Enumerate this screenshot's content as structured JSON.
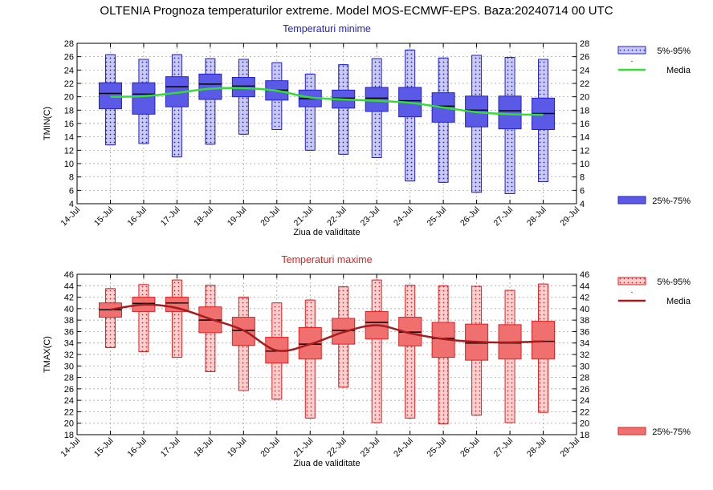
{
  "title": "OLTENIA  Prognoza temperaturilor extreme.  Model MOS-ECMWF-EPS. Baza:20240714 00 UTC",
  "legend": {
    "label_5_95": "5%-95%",
    "label_median_dot": ".",
    "label_media": "Media",
    "label_25_75": "25%-75%"
  },
  "colors": {
    "min_stroke": "#2222cc",
    "min_fill_inner": "#5a5ae6",
    "min_fill_outer": "#c9c9f2",
    "min_mean": "#33dd33",
    "max_stroke": "#e02020",
    "max_fill_inner": "#f07070",
    "max_fill_outer": "#fbd0d0",
    "max_mean": "#a51c1c"
  },
  "chart_data": [
    {
      "type": "box",
      "title": "Temperaturi minime",
      "xlabel": "Ziua de validitate",
      "ylabel": "TMIN(C)",
      "ylim": [
        4,
        28
      ],
      "yticks": [
        4,
        6,
        8,
        10,
        12,
        14,
        16,
        18,
        20,
        22,
        24,
        26,
        28
      ],
      "categories": [
        "14-Jul",
        "15-Jul",
        "16-Jul",
        "17-Jul",
        "18-Jul",
        "19-Jul",
        "20-Jul",
        "21-Jul",
        "22-Jul",
        "23-Jul",
        "24-Jul",
        "25-Jul",
        "26-Jul",
        "27-Jul",
        "28-Jul",
        "29-Jul"
      ],
      "grid": true,
      "boxes": [
        {
          "date": "15-Jul",
          "p5": 12.8,
          "p25": 18.2,
          "median": 20.5,
          "p75": 22.1,
          "p95": 26.3
        },
        {
          "date": "16-Jul",
          "p5": 13.0,
          "p25": 17.4,
          "median": 20.4,
          "p75": 22.1,
          "p95": 25.6
        },
        {
          "date": "17-Jul",
          "p5": 11.0,
          "p25": 18.5,
          "median": 21.5,
          "p75": 23.0,
          "p95": 26.3
        },
        {
          "date": "18-Jul",
          "p5": 12.9,
          "p25": 19.6,
          "median": 21.9,
          "p75": 23.4,
          "p95": 25.7
        },
        {
          "date": "19-Jul",
          "p5": 14.4,
          "p25": 20.0,
          "median": 21.6,
          "p75": 22.9,
          "p95": 25.6
        },
        {
          "date": "20-Jul",
          "p5": 15.1,
          "p25": 19.5,
          "median": 21.0,
          "p75": 22.4,
          "p95": 25.1
        },
        {
          "date": "21-Jul",
          "p5": 12.0,
          "p25": 18.5,
          "median": 19.7,
          "p75": 21.0,
          "p95": 23.4
        },
        {
          "date": "22-Jul",
          "p5": 11.4,
          "p25": 18.3,
          "median": 19.8,
          "p75": 21.0,
          "p95": 24.8
        },
        {
          "date": "23-Jul",
          "p5": 10.9,
          "p25": 17.8,
          "median": 19.8,
          "p75": 21.4,
          "p95": 25.7
        },
        {
          "date": "24-Jul",
          "p5": 7.4,
          "p25": 17.0,
          "median": 19.4,
          "p75": 21.4,
          "p95": 27.0
        },
        {
          "date": "25-Jul",
          "p5": 7.2,
          "p25": 16.2,
          "median": 18.6,
          "p75": 20.6,
          "p95": 25.8
        },
        {
          "date": "26-Jul",
          "p5": 5.7,
          "p25": 15.5,
          "median": 18.0,
          "p75": 20.1,
          "p95": 26.2
        },
        {
          "date": "27-Jul",
          "p5": 5.5,
          "p25": 15.2,
          "median": 17.9,
          "p75": 20.1,
          "p95": 25.9
        },
        {
          "date": "28-Jul",
          "p5": 7.3,
          "p25": 15.1,
          "median": 17.5,
          "p75": 19.8,
          "p95": 25.6
        }
      ],
      "mean": [
        {
          "date": "15-Jul",
          "value": 20.0
        },
        {
          "date": "16-Jul",
          "value": 20.1
        },
        {
          "date": "17-Jul",
          "value": 20.6
        },
        {
          "date": "18-Jul",
          "value": 21.2
        },
        {
          "date": "19-Jul",
          "value": 21.3
        },
        {
          "date": "20-Jul",
          "value": 20.9
        },
        {
          "date": "21-Jul",
          "value": 19.9
        },
        {
          "date": "22-Jul",
          "value": 19.6
        },
        {
          "date": "23-Jul",
          "value": 19.4
        },
        {
          "date": "24-Jul",
          "value": 19.1
        },
        {
          "date": "25-Jul",
          "value": 18.4
        },
        {
          "date": "26-Jul",
          "value": 17.7
        },
        {
          "date": "27-Jul",
          "value": 17.4
        },
        {
          "date": "28-Jul",
          "value": 17.3
        }
      ]
    },
    {
      "type": "box",
      "title": "Temperaturi maxime",
      "xlabel": "Ziua de validitate",
      "ylabel": "TMAX(C)",
      "ylim": [
        18,
        46
      ],
      "yticks": [
        18,
        20,
        22,
        24,
        26,
        28,
        30,
        32,
        34,
        36,
        38,
        40,
        42,
        44,
        46
      ],
      "categories": [
        "14-Jul",
        "15-Jul",
        "16-Jul",
        "17-Jul",
        "18-Jul",
        "19-Jul",
        "20-Jul",
        "21-Jul",
        "22-Jul",
        "23-Jul",
        "24-Jul",
        "25-Jul",
        "26-Jul",
        "27-Jul",
        "28-Jul",
        "29-Jul"
      ],
      "grid": true,
      "boxes": [
        {
          "date": "15-Jul",
          "p5": 33.2,
          "p25": 38.5,
          "median": 39.8,
          "p75": 41.0,
          "p95": 43.5
        },
        {
          "date": "16-Jul",
          "p5": 32.5,
          "p25": 39.5,
          "median": 40.9,
          "p75": 42.0,
          "p95": 44.2
        },
        {
          "date": "17-Jul",
          "p5": 31.5,
          "p25": 39.5,
          "median": 41.0,
          "p75": 42.0,
          "p95": 45.0
        },
        {
          "date": "18-Jul",
          "p5": 29.0,
          "p25": 35.8,
          "median": 38.0,
          "p75": 40.3,
          "p95": 44.1
        },
        {
          "date": "19-Jul",
          "p5": 25.7,
          "p25": 33.6,
          "median": 36.2,
          "p75": 38.5,
          "p95": 42.0
        },
        {
          "date": "20-Jul",
          "p5": 24.2,
          "p25": 30.5,
          "median": 32.6,
          "p75": 35.0,
          "p95": 41.0
        },
        {
          "date": "21-Jul",
          "p5": 20.9,
          "p25": 31.2,
          "median": 33.8,
          "p75": 36.7,
          "p95": 41.5
        },
        {
          "date": "22-Jul",
          "p5": 26.3,
          "p25": 33.8,
          "median": 36.2,
          "p75": 38.3,
          "p95": 43.8
        },
        {
          "date": "23-Jul",
          "p5": 20.1,
          "p25": 34.7,
          "median": 37.6,
          "p75": 39.5,
          "p95": 45.0
        },
        {
          "date": "24-Jul",
          "p5": 20.9,
          "p25": 33.5,
          "median": 35.9,
          "p75": 38.5,
          "p95": 44.1
        },
        {
          "date": "25-Jul",
          "p5": 19.9,
          "p25": 31.5,
          "median": 34.8,
          "p75": 37.6,
          "p95": 44.0
        },
        {
          "date": "26-Jul",
          "p5": 21.4,
          "p25": 31.0,
          "median": 34.0,
          "p75": 37.3,
          "p95": 43.9
        },
        {
          "date": "27-Jul",
          "p5": 20.1,
          "p25": 31.2,
          "median": 34.0,
          "p75": 37.2,
          "p95": 43.2
        },
        {
          "date": "28-Jul",
          "p5": 21.9,
          "p25": 31.2,
          "median": 34.3,
          "p75": 37.8,
          "p95": 44.3
        }
      ],
      "mean": [
        {
          "date": "15-Jul",
          "value": 39.8
        },
        {
          "date": "16-Jul",
          "value": 40.7
        },
        {
          "date": "17-Jul",
          "value": 40.1
        },
        {
          "date": "18-Jul",
          "value": 38.2
        },
        {
          "date": "19-Jul",
          "value": 36.2
        },
        {
          "date": "20-Jul",
          "value": 32.7
        },
        {
          "date": "21-Jul",
          "value": 33.8
        },
        {
          "date": "22-Jul",
          "value": 35.9
        },
        {
          "date": "23-Jul",
          "value": 37.1
        },
        {
          "date": "24-Jul",
          "value": 35.7
        },
        {
          "date": "25-Jul",
          "value": 34.7
        },
        {
          "date": "26-Jul",
          "value": 34.2
        },
        {
          "date": "27-Jul",
          "value": 34.1
        },
        {
          "date": "28-Jul",
          "value": 34.3
        }
      ]
    }
  ]
}
